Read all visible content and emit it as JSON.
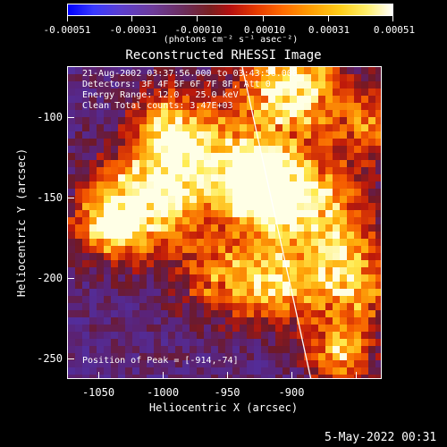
{
  "colorbar": {
    "tick_labels": [
      "-0.00051",
      "-0.00031",
      "-0.00010",
      "0.00010",
      "0.00031",
      "0.00051"
    ],
    "units": "(photons cm⁻² s⁻¹ asec⁻²)"
  },
  "title": "Reconstructed RHESSI Image",
  "overlay": {
    "time_range": "21-Aug-2002 03:37:56.000 to 03:43:56.000",
    "detectors": "Detectors: 3F 4F 5F 6F 7F 8F, Att 0",
    "energy": "Energy Range: 12.0 - 25.0 keV",
    "method": "Clean    Total counts: 3.47E+03",
    "peak": "Position of Peak = [-914,-74]"
  },
  "axes": {
    "xlabel": "Heliocentric X (arcsec)",
    "ylabel": "Heliocentric Y (arcsec)",
    "x_ticks": [
      "-1050",
      "-1000",
      "-950",
      "-900"
    ],
    "y_ticks": [
      "-100",
      "-150",
      "-200",
      "-250"
    ]
  },
  "footer": {
    "timestamp": "5-May-2022 00:31"
  }
}
